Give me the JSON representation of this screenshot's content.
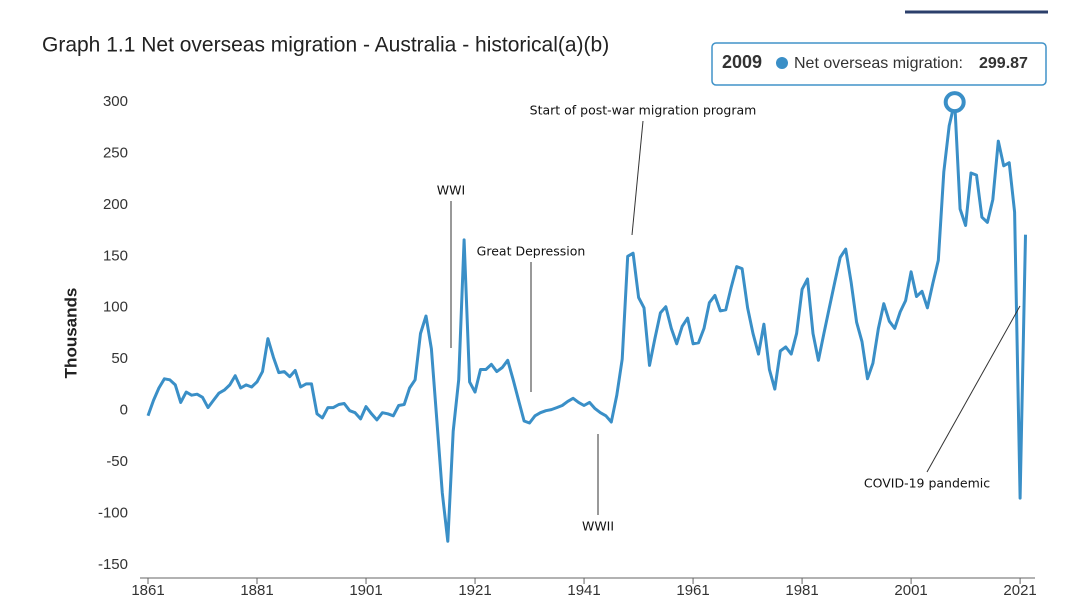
{
  "chart_data": {
    "type": "line",
    "title": "Graph 1.1 Net overseas migration - Australia - historical(a)(b)",
    "y_label": "Thousands",
    "x": [
      1861,
      1862,
      1863,
      1864,
      1865,
      1866,
      1867,
      1868,
      1869,
      1870,
      1871,
      1872,
      1873,
      1874,
      1875,
      1876,
      1877,
      1878,
      1879,
      1880,
      1881,
      1882,
      1883,
      1884,
      1885,
      1886,
      1887,
      1888,
      1889,
      1890,
      1891,
      1892,
      1893,
      1894,
      1895,
      1896,
      1897,
      1898,
      1899,
      1900,
      1901,
      1902,
      1903,
      1904,
      1905,
      1906,
      1907,
      1908,
      1909,
      1910,
      1911,
      1912,
      1913,
      1914,
      1915,
      1916,
      1917,
      1918,
      1919,
      1920,
      1921,
      1922,
      1923,
      1924,
      1925,
      1926,
      1927,
      1928,
      1929,
      1930,
      1931,
      1932,
      1933,
      1934,
      1935,
      1936,
      1937,
      1938,
      1939,
      1940,
      1941,
      1942,
      1943,
      1944,
      1945,
      1946,
      1947,
      1948,
      1949,
      1950,
      1951,
      1952,
      1953,
      1954,
      1955,
      1956,
      1957,
      1958,
      1959,
      1960,
      1961,
      1962,
      1963,
      1964,
      1965,
      1966,
      1967,
      1968,
      1969,
      1970,
      1971,
      1972,
      1973,
      1974,
      1975,
      1976,
      1977,
      1978,
      1979,
      1980,
      1981,
      1982,
      1983,
      1984,
      1985,
      1986,
      1987,
      1988,
      1989,
      1990,
      1991,
      1992,
      1993,
      1994,
      1995,
      1996,
      1997,
      1998,
      1999,
      2000,
      2001,
      2002,
      2003,
      2004,
      2005,
      2006,
      2007,
      2008,
      2009,
      2010,
      2011,
      2012,
      2013,
      2014,
      2015,
      2016,
      2017,
      2018,
      2019,
      2020,
      2021,
      2022
    ],
    "series": [
      {
        "name": "Net overseas migration",
        "color": "#3a8fc7",
        "values": [
          -5,
          10,
          22,
          31,
          30,
          25,
          8,
          18,
          15,
          16,
          13,
          3,
          10,
          17,
          20,
          25,
          34,
          22,
          25,
          23,
          28,
          38,
          70,
          52,
          37,
          38,
          33,
          39,
          23,
          26,
          26,
          -3,
          -7,
          3,
          3,
          6,
          7,
          0,
          -2,
          -8,
          4,
          -3,
          -9,
          -2,
          -3,
          -5,
          5,
          6,
          22,
          30,
          75,
          92,
          60,
          -10,
          -80,
          -127,
          -20,
          30,
          166,
          28,
          18,
          40,
          40,
          45,
          38,
          42,
          49,
          30,
          10,
          -10,
          -12,
          -5,
          -2,
          0,
          1,
          3,
          5,
          9,
          12,
          8,
          5,
          8,
          2,
          -2,
          -5,
          -11,
          15,
          50,
          150,
          153,
          110,
          100,
          44,
          70,
          95,
          101,
          80,
          65,
          82,
          90,
          65,
          66,
          80,
          105,
          112,
          97,
          98,
          120,
          140,
          138,
          100,
          75,
          55,
          84,
          40,
          21,
          58,
          62,
          55,
          75,
          118,
          128,
          75,
          49,
          75,
          100,
          125,
          149,
          157,
          125,
          86,
          67,
          31,
          46,
          80,
          104,
          87,
          80,
          96,
          107,
          135,
          111,
          116,
          100,
          124,
          146,
          232,
          277,
          299.87,
          196,
          180,
          231,
          229,
          188,
          183,
          205,
          262,
          238,
          241,
          193,
          -85,
          171
        ]
      }
    ],
    "xlim": [
      1861,
      2023
    ],
    "xticks": [
      1861,
      1881,
      1901,
      1921,
      1941,
      1961,
      1981,
      2001,
      2021
    ],
    "ylim": [
      -150,
      300
    ],
    "yticks": [
      -150,
      -100,
      -50,
      0,
      50,
      100,
      150,
      200,
      250,
      300
    ],
    "grid": false,
    "annotations": [
      "WWI",
      "Great Depression",
      "Start of post-war migration program",
      "WWII",
      "COVID-19 pandemic"
    ],
    "tooltip": {
      "x_label": "2009",
      "series_label": "Net overseas migration:",
      "value_label": "299.87"
    }
  }
}
